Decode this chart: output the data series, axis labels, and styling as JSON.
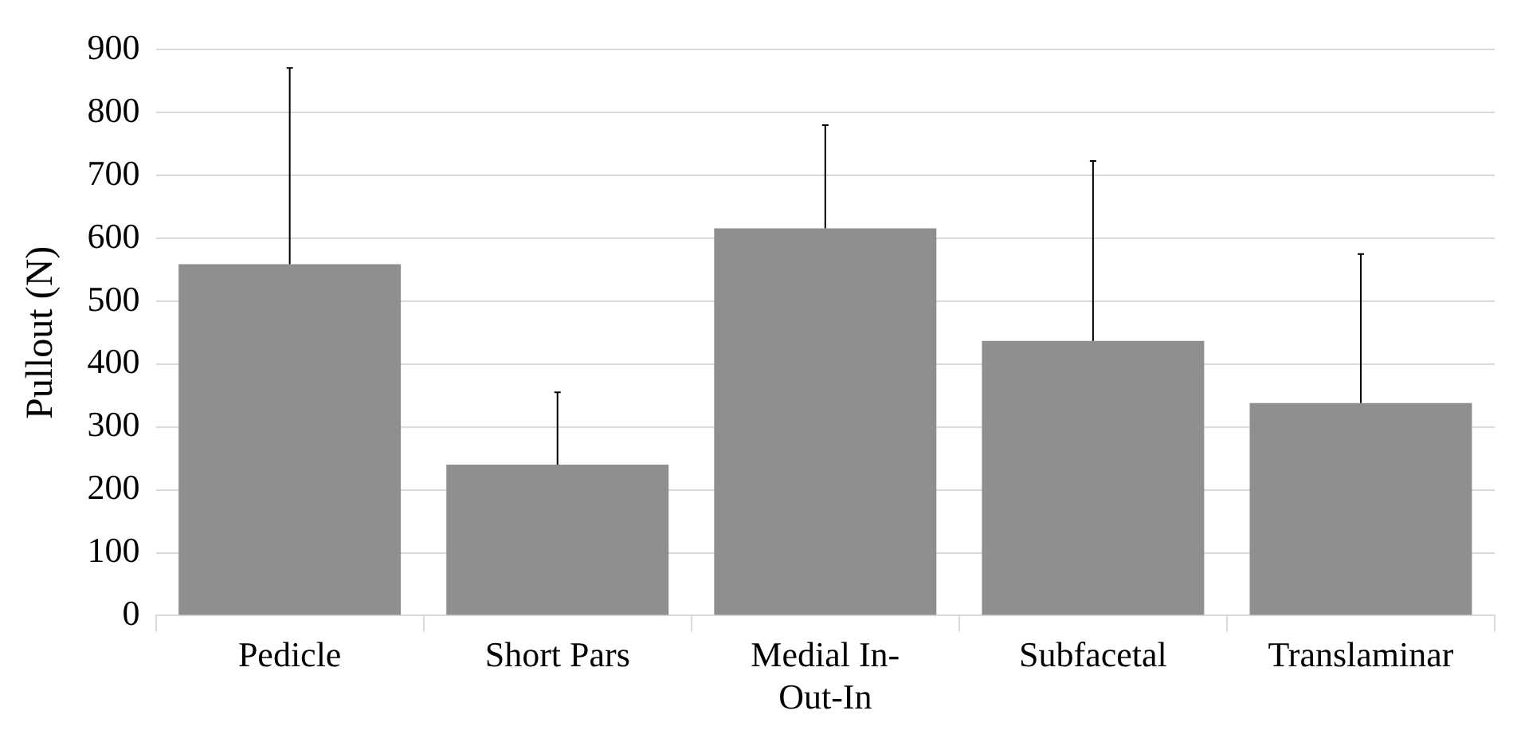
{
  "chart_data": {
    "type": "bar",
    "ylabel": "Pullout (N)",
    "categories": [
      "Pedicle",
      "Short Pars",
      "Medial In-Out-In",
      "Subfacetal",
      "Translaminar"
    ],
    "values": [
      559,
      240,
      616,
      437,
      338
    ],
    "errors": [
      [
        559,
        871
      ],
      [
        240,
        355
      ],
      [
        616,
        780
      ],
      [
        437,
        723
      ],
      [
        338,
        575
      ]
    ],
    "color": "#8f8f8f",
    "ylim": [
      0,
      900
    ],
    "yticks": [
      0,
      100,
      200,
      300,
      400,
      500,
      600,
      700,
      800,
      900
    ],
    "grid": "y",
    "legend": false
  }
}
